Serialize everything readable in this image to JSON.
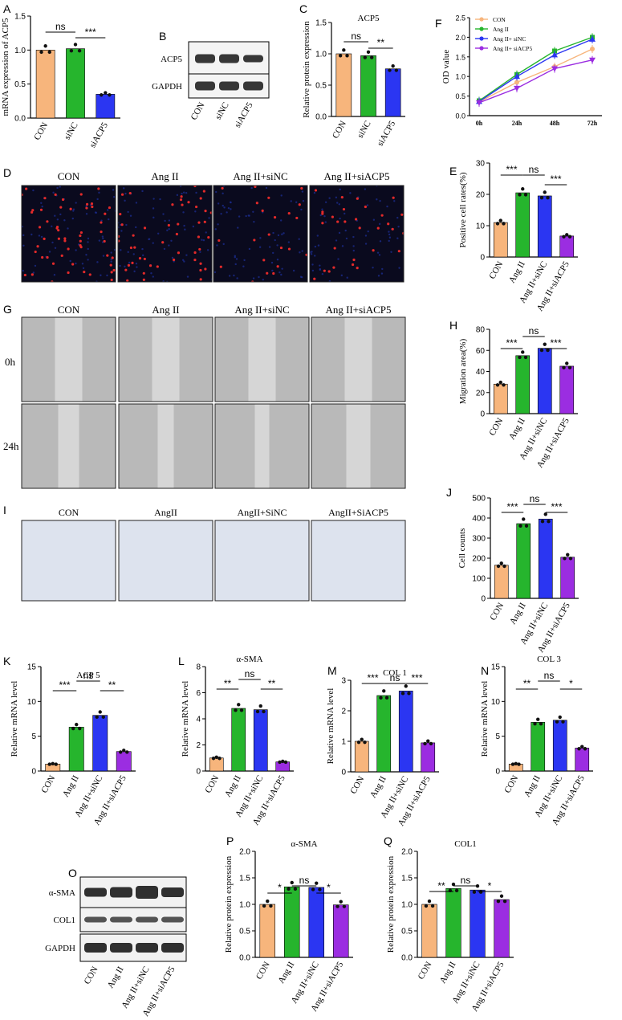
{
  "colors": {
    "CON": "#f5b47b",
    "AngII": "#22b02a",
    "siNC": "#2233ee",
    "siACP5": "#9a22d8",
    "orange": "#f7b57c",
    "green": "#26b52d",
    "blue": "#2b36f2",
    "purple": "#9b2de1"
  },
  "panel_letters": {
    "A": "A",
    "B": "B",
    "C": "C",
    "D": "D",
    "E": "E",
    "F": "F",
    "G": "G",
    "H": "H",
    "I": "I",
    "J": "J",
    "K": "K",
    "L": "L",
    "M": "M",
    "N": "N",
    "O": "O",
    "P": "P",
    "Q": "Q"
  },
  "blot_B": {
    "rows": [
      "ACP5",
      "GAPDH"
    ],
    "lanes": [
      "CON",
      "siNC",
      "siACP5"
    ]
  },
  "blot_O": {
    "rows": [
      "α-SMA",
      "COL1",
      "GAPDH"
    ],
    "lanes": [
      "CON",
      "Ang II",
      "Ang II+siNC",
      "Ang II+siACP5"
    ]
  },
  "panel_D": {
    "columns": [
      "CON",
      "Ang II",
      "Ang II+siNC",
      "Ang II+siACP5"
    ]
  },
  "panel_G": {
    "columns": [
      "CON",
      "Ang II",
      "Ang II+siNC",
      "Ang II+siACP5"
    ],
    "rows": [
      "0h",
      "24h"
    ]
  },
  "panel_I": {
    "columns": [
      "CON",
      "AngII",
      "AngII+SiNC",
      "AngII+SiACP5"
    ]
  },
  "chart_data": [
    {
      "id": "A",
      "type": "bar",
      "title": "",
      "ylabel": "mRNA expression of ACP5",
      "categories": [
        "CON",
        "siNC",
        "siACP5"
      ],
      "values": [
        1.0,
        1.02,
        0.35
      ],
      "ylim": [
        0,
        1.5
      ],
      "yticks": [
        "0.0",
        "0.5",
        "1.0",
        "1.5"
      ],
      "sig": [
        {
          "a": 0,
          "b": 1,
          "text": "ns"
        },
        {
          "a": 1,
          "b": 2,
          "text": "***"
        }
      ]
    },
    {
      "id": "C",
      "type": "bar",
      "title": "ACP5",
      "ylabel": "Relative protein expression",
      "categories": [
        "CON",
        "siNC",
        "siACP5"
      ],
      "values": [
        1.0,
        0.97,
        0.76
      ],
      "ylim": [
        0,
        1.5
      ],
      "yticks": [
        "0.0",
        "0.5",
        "1.0",
        "1.5"
      ],
      "sig": [
        {
          "a": 0,
          "b": 1,
          "text": "ns"
        },
        {
          "a": 1,
          "b": 2,
          "text": "**"
        }
      ]
    },
    {
      "id": "F",
      "type": "line",
      "title": "",
      "ylabel": "OD value",
      "x": [
        "0h",
        "24h",
        "48h",
        "72h"
      ],
      "ylim": [
        0,
        2.5
      ],
      "yticks": [
        "0.0",
        "0.5",
        "1.0",
        "1.5",
        "2.0",
        "2.5"
      ],
      "legend": "top-left",
      "series": [
        {
          "name": "CON",
          "values": [
            0.35,
            0.85,
            1.25,
            1.7
          ]
        },
        {
          "name": "Ang II",
          "values": [
            0.38,
            1.05,
            1.65,
            2.0
          ]
        },
        {
          "name": "Ang II+ siNC",
          "values": [
            0.36,
            1.0,
            1.55,
            1.95
          ]
        },
        {
          "name": "Ang II+ siACP5",
          "values": [
            0.33,
            0.7,
            1.2,
            1.42
          ]
        }
      ]
    },
    {
      "id": "E",
      "type": "bar",
      "title": "",
      "ylabel": "Positive cell rates(%)",
      "categories": [
        "CON",
        "Ang II",
        "Ang II+siNC",
        "Ang II+siACP5"
      ],
      "values": [
        11,
        20.5,
        19.5,
        6.7
      ],
      "ylim": [
        0,
        30
      ],
      "yticks": [
        "0",
        "10",
        "20",
        "30"
      ],
      "sig": [
        {
          "a": 0,
          "b": 1,
          "text": "***"
        },
        {
          "a": 1,
          "b": 2,
          "text": "ns"
        },
        {
          "a": 2,
          "b": 3,
          "text": "***"
        }
      ]
    },
    {
      "id": "H",
      "type": "bar",
      "title": "",
      "ylabel": "Migration area(%)",
      "categories": [
        "CON",
        "Ang II",
        "Ang II+siNC",
        "Ang II+siACP5"
      ],
      "values": [
        28,
        55,
        62,
        45
      ],
      "ylim": [
        0,
        80
      ],
      "yticks": [
        "0",
        "20",
        "40",
        "60",
        "80"
      ],
      "sig": [
        {
          "a": 0,
          "b": 1,
          "text": "***"
        },
        {
          "a": 1,
          "b": 2,
          "text": "ns"
        },
        {
          "a": 2,
          "b": 3,
          "text": "***"
        }
      ]
    },
    {
      "id": "J",
      "type": "bar",
      "title": "",
      "ylabel": "Cell counts",
      "categories": [
        "CON",
        "Ang II",
        "Ang II+siNC",
        "Ang II+siACP5"
      ],
      "values": [
        165,
        372,
        395,
        205
      ],
      "ylim": [
        0,
        500
      ],
      "yticks": [
        "0",
        "100",
        "200",
        "300",
        "400",
        "500"
      ],
      "sig": [
        {
          "a": 0,
          "b": 1,
          "text": "***"
        },
        {
          "a": 1,
          "b": 2,
          "text": "ns"
        },
        {
          "a": 2,
          "b": 3,
          "text": "***"
        }
      ]
    },
    {
      "id": "K",
      "type": "bar",
      "title": "ACP 5",
      "ylabel": "Relative mRNA level",
      "categories": [
        "CON",
        "Ang II",
        "Ang II+siNC",
        "Ang II+siACP5"
      ],
      "values": [
        1.0,
        6.3,
        8.0,
        2.8
      ],
      "ylim": [
        0,
        15
      ],
      "yticks": [
        "0",
        "5",
        "10",
        "15"
      ],
      "sig": [
        {
          "a": 0,
          "b": 1,
          "text": "***"
        },
        {
          "a": 1,
          "b": 2,
          "text": "ns"
        },
        {
          "a": 2,
          "b": 3,
          "text": "**"
        }
      ]
    },
    {
      "id": "L",
      "type": "bar",
      "title": "α-SMA",
      "ylabel": "Relative mRNA level",
      "categories": [
        "CON",
        "Ang II",
        "Ang II+siNC",
        "Ang II+siACP5"
      ],
      "values": [
        1.0,
        4.8,
        4.7,
        0.7
      ],
      "ylim": [
        0,
        8
      ],
      "yticks": [
        "0",
        "2",
        "4",
        "6",
        "8"
      ],
      "sig": [
        {
          "a": 0,
          "b": 1,
          "text": "**"
        },
        {
          "a": 1,
          "b": 2,
          "text": "ns"
        },
        {
          "a": 2,
          "b": 3,
          "text": "**"
        }
      ]
    },
    {
      "id": "M",
      "type": "bar",
      "title": "COL 1",
      "ylabel": "Relative mRNA level",
      "categories": [
        "CON",
        "Ang II",
        "Ang II+siNC",
        "Ang II+siACP5"
      ],
      "values": [
        1.0,
        2.5,
        2.65,
        0.95
      ],
      "ylim": [
        0,
        3
      ],
      "yticks": [
        "0",
        "1",
        "2",
        "3"
      ],
      "sig": [
        {
          "a": 0,
          "b": 1,
          "text": "***"
        },
        {
          "a": 1,
          "b": 2,
          "text": "ns"
        },
        {
          "a": 2,
          "b": 3,
          "text": "***"
        }
      ]
    },
    {
      "id": "N",
      "type": "bar",
      "title": "COL 3",
      "ylabel": "Relative mRNA level",
      "categories": [
        "CON",
        "Ang II",
        "Ang II+siNC",
        "Ang II+siACP5"
      ],
      "values": [
        1.0,
        7.0,
        7.3,
        3.3
      ],
      "ylim": [
        0,
        15
      ],
      "yticks": [
        "0",
        "5",
        "10",
        "15"
      ],
      "sig": [
        {
          "a": 0,
          "b": 1,
          "text": "**"
        },
        {
          "a": 1,
          "b": 2,
          "text": "ns"
        },
        {
          "a": 2,
          "b": 3,
          "text": "*"
        }
      ]
    },
    {
      "id": "P",
      "type": "bar",
      "title": "α-SMA",
      "ylabel": "Relative protein expression",
      "categories": [
        "CON",
        "Ang II",
        "Ang II+siNC",
        "Ang II+siACP5"
      ],
      "values": [
        1.0,
        1.33,
        1.32,
        0.99
      ],
      "ylim": [
        0,
        2.0
      ],
      "yticks": [
        "0.0",
        "0.5",
        "1.0",
        "1.5",
        "2.0"
      ],
      "sig": [
        {
          "a": 0,
          "b": 1,
          "text": "*"
        },
        {
          "a": 1,
          "b": 2,
          "text": "ns"
        },
        {
          "a": 2,
          "b": 3,
          "text": "*"
        }
      ]
    },
    {
      "id": "Q",
      "type": "bar",
      "title": "COL1",
      "ylabel": "Relative protein expression",
      "categories": [
        "CON",
        "Ang II",
        "Ang II+siNC",
        "Ang II+siACP5"
      ],
      "values": [
        1.0,
        1.3,
        1.27,
        1.09
      ],
      "ylim": [
        0,
        2.0
      ],
      "yticks": [
        "0.0",
        "0.5",
        "1.0",
        "1.5",
        "2.0"
      ],
      "sig": [
        {
          "a": 0,
          "b": 1,
          "text": "**"
        },
        {
          "a": 1,
          "b": 2,
          "text": "ns"
        },
        {
          "a": 2,
          "b": 3,
          "text": "*"
        }
      ]
    }
  ]
}
